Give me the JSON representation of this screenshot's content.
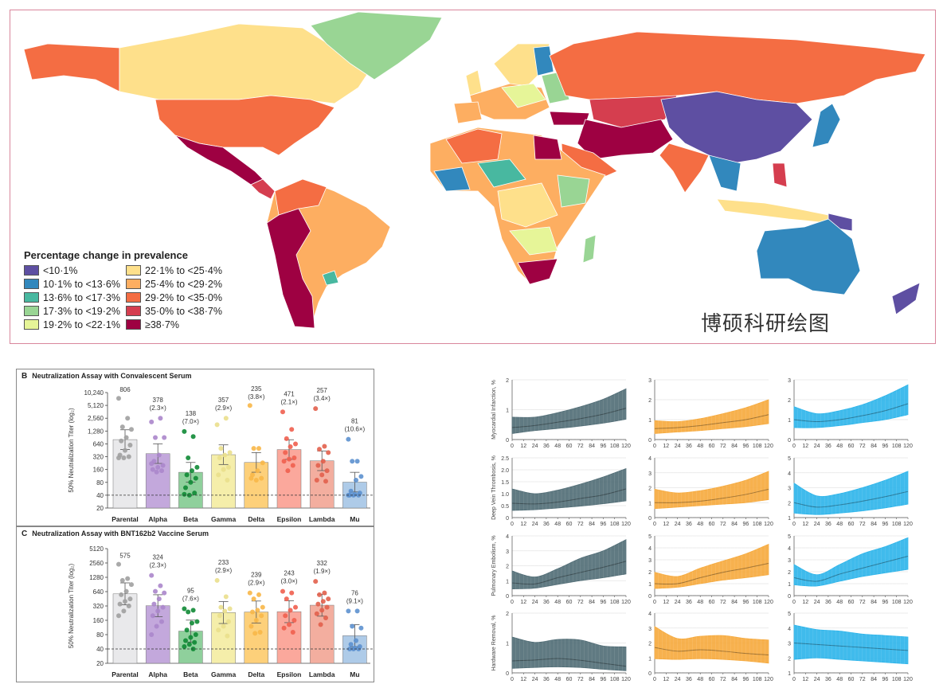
{
  "map": {
    "legend_title": "Percentage change in prevalence",
    "legend": [
      {
        "label": "<10·1%",
        "color": "#5e4fa2"
      },
      {
        "label": "10·1% to <13·6%",
        "color": "#3288bd"
      },
      {
        "label": "13·6% to <17·3%",
        "color": "#48b8a0"
      },
      {
        "label": "17·3% to <19·2%",
        "color": "#99d594"
      },
      {
        "label": "19·2% to <22·1%",
        "color": "#e6f598"
      },
      {
        "label": "22·1% to <25·4%",
        "color": "#fee08b"
      },
      {
        "label": "25·4% to <29·2%",
        "color": "#fdae61"
      },
      {
        "label": "29·2% to <35·0%",
        "color": "#f46d43"
      },
      {
        "label": "35·0% to <38·7%",
        "color": "#d53e4f"
      },
      {
        "label": "≥38·7%",
        "color": "#9e0142"
      }
    ]
  },
  "chart_data": [
    {
      "type": "bar",
      "panel": "B",
      "title": "Neutralization Assay with Convalescent Serum",
      "ylabel": "50% Neutralization Titer (log₂)",
      "yscale": "log2",
      "ylim": [
        20,
        10240
      ],
      "yticks": [
        "20",
        "40",
        "80",
        "160",
        "320",
        "640",
        "1,280",
        "2,560",
        "5,120",
        "10,240"
      ],
      "threshold": 40,
      "categories": [
        "Parental",
        "Alpha",
        "Beta",
        "Gamma",
        "Delta",
        "Epsilon",
        "Lambda",
        "Mu"
      ],
      "values": [
        806,
        378,
        138,
        357,
        235,
        471,
        257,
        81
      ],
      "fold_labels": [
        "",
        "(2.3×)",
        "(7.0×)",
        "(2.9×)",
        "(3.8×)",
        "(2.1×)",
        "(3.4×)",
        "(10.6×)"
      ],
      "points": [
        [
          7500,
          2560,
          1600,
          1400,
          900,
          750,
          600,
          450,
          350,
          320,
          300,
          300
        ],
        [
          2100,
          2560,
          900,
          900,
          350,
          250,
          200,
          180,
          160,
          150,
          140,
          220
        ],
        [
          1250,
          950,
          300,
          180,
          150,
          120,
          100,
          80,
          60,
          45,
          40,
          42
        ],
        [
          1800,
          2560,
          500,
          400,
          350,
          300,
          180,
          160,
          120,
          90
        ],
        [
          5100,
          500,
          500,
          230,
          150,
          120,
          100,
          90,
          100
        ],
        [
          3600,
          1400,
          850,
          640,
          550,
          400,
          300,
          280,
          250,
          200,
          150
        ],
        [
          4300,
          560,
          480,
          400,
          250,
          200,
          150,
          120,
          90,
          85
        ],
        [
          820,
          250,
          250,
          110,
          90,
          50,
          45,
          42,
          40,
          40,
          40,
          40
        ]
      ],
      "bar_colors": [
        "#e9e9eb",
        "#c3a8dc",
        "#8fd09c",
        "#f5eeaa",
        "#fdd07a",
        "#fba89c",
        "#f3ae9f",
        "#aecbe8"
      ],
      "point_colors": [
        "#a0a0a0",
        "#ab86cb",
        "#0f8a35",
        "#eadf8c",
        "#f8b748",
        "#ef5f4f",
        "#e2614d",
        "#5d91cf"
      ]
    },
    {
      "type": "bar",
      "panel": "C",
      "title": "Neutralization Assay with BNT162b2 Vaccine Serum",
      "ylabel": "50% Neutralization Titer (log₂)",
      "yscale": "log2",
      "ylim": [
        20,
        5120
      ],
      "yticks": [
        "20",
        "40",
        "80",
        "160",
        "320",
        "640",
        "1280",
        "2560",
        "5120"
      ],
      "threshold": 40,
      "categories": [
        "Parental",
        "Alpha",
        "Beta",
        "Gamma",
        "Delta",
        "Epsilon",
        "Lambda",
        "Mu"
      ],
      "values": [
        575,
        324,
        95,
        233,
        239,
        243,
        332,
        76
      ],
      "fold_labels": [
        "",
        "(2.3×)",
        "(7.6×)",
        "(2.9×)",
        "(2.9×)",
        "(3.0×)",
        "(1.9×)",
        "(9.1×)"
      ],
      "points": [
        [
          2400,
          1200,
          1100,
          900,
          650,
          550,
          450,
          400,
          350,
          320,
          250,
          200
        ],
        [
          1400,
          850,
          650,
          600,
          450,
          350,
          300,
          250,
          200,
          150,
          120,
          80
        ],
        [
          280,
          260,
          240,
          150,
          140,
          100,
          80,
          70,
          60,
          55,
          50,
          45,
          40
        ],
        [
          1100,
          500,
          300,
          280,
          250,
          200,
          150,
          120,
          100,
          75
        ],
        [
          600,
          550,
          450,
          300,
          260,
          240,
          200,
          160,
          120,
          90,
          85
        ],
        [
          650,
          600,
          450,
          300,
          260,
          200,
          160,
          130,
          110,
          90
        ],
        [
          1050,
          600,
          550,
          450,
          400,
          350,
          300,
          260,
          220,
          180,
          130
        ],
        [
          250,
          250,
          120,
          110,
          60,
          50,
          45,
          42,
          40,
          40,
          40
        ]
      ],
      "bar_colors": [
        "#e9e9eb",
        "#c3a8dc",
        "#8fd09c",
        "#f5eeaa",
        "#fdd07a",
        "#fba89c",
        "#f3ae9f",
        "#aecbe8"
      ],
      "point_colors": [
        "#a0a0a0",
        "#ab86cb",
        "#0f8a35",
        "#eadf8c",
        "#f8b748",
        "#ef5f4f",
        "#e2614d",
        "#5d91cf"
      ]
    },
    {
      "type": "area",
      "x": [
        0,
        24,
        48,
        72,
        96,
        120
      ],
      "xticks": [
        "0",
        "12",
        "24",
        "36",
        "48",
        "60",
        "72",
        "84",
        "96",
        "108",
        "120"
      ],
      "column_colors": [
        "#4f6b74",
        "#f6a93b",
        "#2bb4ea"
      ],
      "rows": [
        {
          "ylabel": "Myocardial Infarction, %",
          "panels": [
            {
              "ylim": [
                0,
                2
              ],
              "yticks": [
                "0",
                "1",
                "2"
              ],
              "mid": [
                0.4,
                0.47,
                0.58,
                0.7,
                0.85,
                1.05
              ],
              "lo": [
                0.2,
                0.3,
                0.37,
                0.45,
                0.55,
                0.68
              ],
              "hi": [
                0.75,
                0.75,
                0.9,
                1.1,
                1.35,
                1.7
              ]
            },
            {
              "ylim": [
                0,
                3
              ],
              "yticks": [
                "0",
                "1",
                "2",
                "3"
              ],
              "mid": [
                0.55,
                0.6,
                0.7,
                0.85,
                1.0,
                1.25
              ],
              "lo": [
                0.3,
                0.38,
                0.45,
                0.55,
                0.65,
                0.8
              ],
              "hi": [
                0.95,
                0.9,
                1.05,
                1.3,
                1.6,
                2.0
              ]
            },
            {
              "ylim": [
                0,
                3
              ],
              "yticks": [
                "0",
                "1",
                "2",
                "3"
              ],
              "mid": [
                1.0,
                0.9,
                1.0,
                1.2,
                1.45,
                1.8
              ],
              "lo": [
                0.6,
                0.6,
                0.7,
                0.85,
                1.0,
                1.25
              ],
              "hi": [
                1.65,
                1.3,
                1.45,
                1.75,
                2.2,
                2.75
              ]
            }
          ]
        },
        {
          "ylabel": "Deep Vein Thrombosis, %",
          "panels": [
            {
              "ylim": [
                0,
                2.5
              ],
              "yticks": [
                "0",
                "0.5",
                "1.0",
                "1.5",
                "2.0",
                "2.5"
              ],
              "mid": [
                0.6,
                0.57,
                0.65,
                0.8,
                0.95,
                1.2
              ],
              "lo": [
                0.3,
                0.33,
                0.4,
                0.48,
                0.58,
                0.7
              ],
              "hi": [
                1.2,
                1.0,
                1.15,
                1.4,
                1.7,
                2.05
              ]
            },
            {
              "ylim": [
                0,
                4
              ],
              "yticks": [
                "0",
                "1",
                "2",
                "3",
                "4"
              ],
              "mid": [
                1.0,
                1.0,
                1.1,
                1.3,
                1.55,
                1.9
              ],
              "lo": [
                0.6,
                0.7,
                0.8,
                0.9,
                1.0,
                1.2
              ],
              "hi": [
                1.9,
                1.65,
                1.8,
                2.1,
                2.5,
                3.1
              ]
            },
            {
              "ylim": [
                1,
                5
              ],
              "yticks": [
                "1",
                "2",
                "3",
                "4",
                "5"
              ],
              "mid": [
                2.0,
                1.7,
                1.85,
                2.1,
                2.4,
                2.75
              ],
              "lo": [
                1.3,
                1.2,
                1.3,
                1.45,
                1.65,
                1.9
              ],
              "hi": [
                3.3,
                2.45,
                2.6,
                3.0,
                3.5,
                4.1
              ]
            }
          ]
        },
        {
          "ylabel": "Pulmonary Embolism, %",
          "panels": [
            {
              "ylim": [
                0,
                4
              ],
              "yticks": [
                "0",
                "1",
                "2",
                "3",
                "4"
              ],
              "mid": [
                0.85,
                0.78,
                1.2,
                1.55,
                1.9,
                2.3
              ],
              "lo": [
                0.45,
                0.5,
                0.75,
                1.0,
                1.2,
                1.45
              ],
              "hi": [
                1.65,
                1.25,
                1.8,
                2.5,
                3.0,
                3.75
              ]
            },
            {
              "ylim": [
                0,
                5
              ],
              "yticks": [
                "0",
                "1",
                "2",
                "3",
                "4",
                "5"
              ],
              "mid": [
                1.0,
                1.0,
                1.5,
                1.95,
                2.3,
                2.7
              ],
              "lo": [
                0.6,
                0.7,
                1.0,
                1.3,
                1.5,
                1.75
              ],
              "hi": [
                1.95,
                1.6,
                2.3,
                2.9,
                3.5,
                4.3
              ]
            },
            {
              "ylim": [
                0,
                5
              ],
              "yticks": [
                "0",
                "1",
                "2",
                "3",
                "4",
                "5"
              ],
              "mid": [
                1.5,
                1.2,
                1.8,
                2.3,
                2.8,
                3.3
              ],
              "lo": [
                0.9,
                0.8,
                1.2,
                1.6,
                1.9,
                2.2
              ],
              "hi": [
                2.6,
                1.75,
                2.6,
                3.5,
                4.1,
                4.85
              ]
            }
          ]
        },
        {
          "ylabel": "Hardware Removal, %",
          "panels": [
            {
              "ylim": [
                0,
                2
              ],
              "yticks": [
                "0",
                "1",
                "2"
              ],
              "mid": [
                0.4,
                0.43,
                0.48,
                0.42,
                0.32,
                0.22
              ],
              "lo": [
                0.15,
                0.18,
                0.2,
                0.18,
                0.12,
                0.07
              ],
              "hi": [
                1.2,
                1.02,
                1.12,
                1.1,
                0.9,
                0.87
              ]
            },
            {
              "ylim": [
                0,
                4
              ],
              "yticks": [
                "0",
                "1",
                "2",
                "3",
                "4"
              ],
              "mid": [
                1.7,
                1.45,
                1.55,
                1.45,
                1.3,
                1.2
              ],
              "lo": [
                0.95,
                0.9,
                0.95,
                0.9,
                0.8,
                0.65
              ],
              "hi": [
                3.1,
                2.3,
                2.45,
                2.5,
                2.3,
                2.2
              ]
            },
            {
              "ylim": [
                1,
                5
              ],
              "yticks": [
                "1",
                "2",
                "3",
                "4",
                "5"
              ],
              "mid": [
                3.0,
                2.9,
                2.8,
                2.7,
                2.6,
                2.5
              ],
              "lo": [
                1.9,
                2.0,
                1.9,
                1.8,
                1.7,
                1.6
              ],
              "hi": [
                4.2,
                3.9,
                3.8,
                3.6,
                3.5,
                3.4
              ]
            }
          ]
        }
      ]
    }
  ],
  "watermark": "博硕科研绘图"
}
